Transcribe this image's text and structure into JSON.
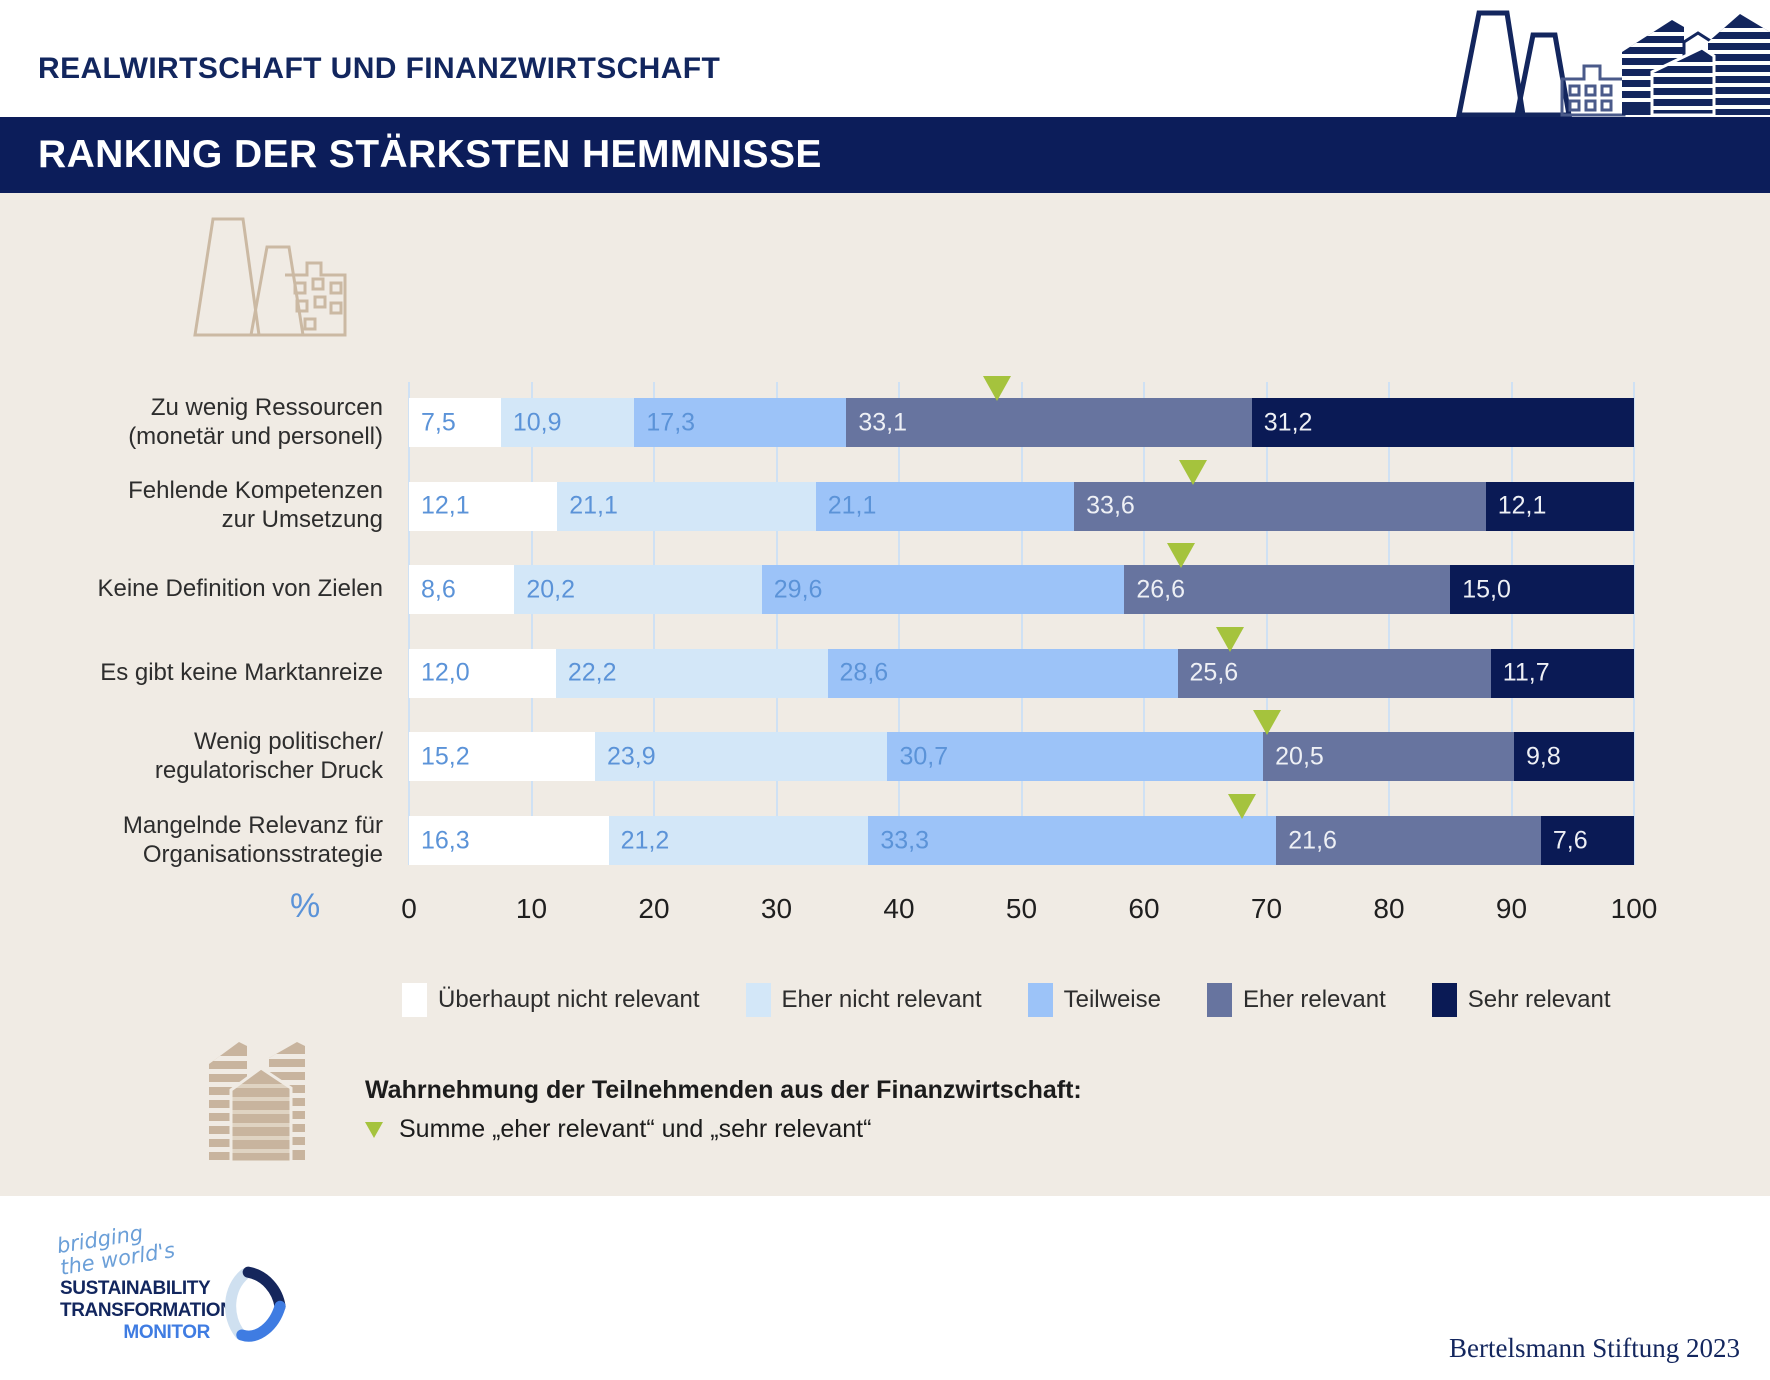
{
  "header": {
    "kicker": "REALWIRTSCHAFT UND FINANZWIRTSCHAFT",
    "title": "RANKING DER STÄRKSTEN HEMMNISSE"
  },
  "chart_data": {
    "type": "bar",
    "variant": "horizontal-stacked-100",
    "title": "RANKING DER STÄRKSTEN HEMMNISSE",
    "unit": "%",
    "percent_symbol": "%",
    "xlim": [
      0,
      100
    ],
    "x_ticks": [
      0,
      10,
      20,
      30,
      40,
      50,
      60,
      70,
      80,
      90,
      100
    ],
    "grid": true,
    "legend_position": "bottom",
    "categories": [
      [
        "Zu wenig Ressourcen",
        "(monetär und personell)"
      ],
      [
        "Fehlende Kompetenzen",
        "zur Umsetzung"
      ],
      [
        "Keine Definition von Zielen"
      ],
      [
        "Es gibt keine Marktanreize"
      ],
      [
        "Wenig politischer/",
        "regulatorischer Druck"
      ],
      [
        "Mangelnde Relevanz für",
        "Organisationsstrategie"
      ]
    ],
    "series": [
      {
        "name": "Überhaupt nicht relevant",
        "color": "#ffffff",
        "label_color": "#5b93d8",
        "values": [
          7.5,
          12.1,
          8.6,
          12.0,
          15.2,
          16.3
        ],
        "labels": [
          "7,5",
          "12,1",
          "8,6",
          "12,0",
          "15,2",
          "16,3"
        ]
      },
      {
        "name": "Eher nicht relevant",
        "color": "#d3e7f8",
        "label_color": "#5b93d8",
        "values": [
          10.9,
          21.1,
          20.2,
          22.2,
          23.9,
          21.2
        ],
        "labels": [
          "10,9",
          "21,1",
          "20,2",
          "22,2",
          "23,9",
          "21,2"
        ]
      },
      {
        "name": "Teilweise",
        "color": "#9cc3f8",
        "label_color": "#5b93d8",
        "values": [
          17.3,
          21.1,
          29.6,
          28.6,
          30.7,
          33.3
        ],
        "labels": [
          "17,3",
          "21,1",
          "29,6",
          "28,6",
          "30,7",
          "33,3"
        ]
      },
      {
        "name": "Eher relevant",
        "color": "#67749f",
        "label_color": "#eef0f5",
        "values": [
          33.1,
          33.6,
          26.6,
          25.6,
          20.5,
          21.6
        ],
        "labels": [
          "33,1",
          "33,6",
          "26,6",
          "25,6",
          "20,5",
          "21,6"
        ]
      },
      {
        "name": "Sehr relevant",
        "color": "#0a1a55",
        "label_color": "#eef0f5",
        "values": [
          31.2,
          12.1,
          15.0,
          11.7,
          9.8,
          7.6
        ],
        "labels": [
          "31,2",
          "12,1",
          "15,0",
          "11,7",
          "9,8",
          "7,6"
        ]
      }
    ],
    "markers": {
      "name": "Wahrnehmung der Teilnehmenden aus der Finanzwirtschaft: Summe eher relevant und sehr relevant",
      "color": "#a5c33d",
      "values": [
        48,
        64,
        63,
        67,
        70,
        68
      ]
    }
  },
  "footnote": {
    "title": "Wahrnehmung der Teilnehmenden aus der Finanzwirtschaft:",
    "line": "Summe „eher relevant“ und „sehr relevant“"
  },
  "logo": {
    "script": "bridging\nthe world's",
    "line1": "SUSTAINABILITY",
    "line2": "TRANSFORMATION",
    "line3": "MONITOR"
  },
  "credit": "Bertelsmann Stiftung 2023"
}
